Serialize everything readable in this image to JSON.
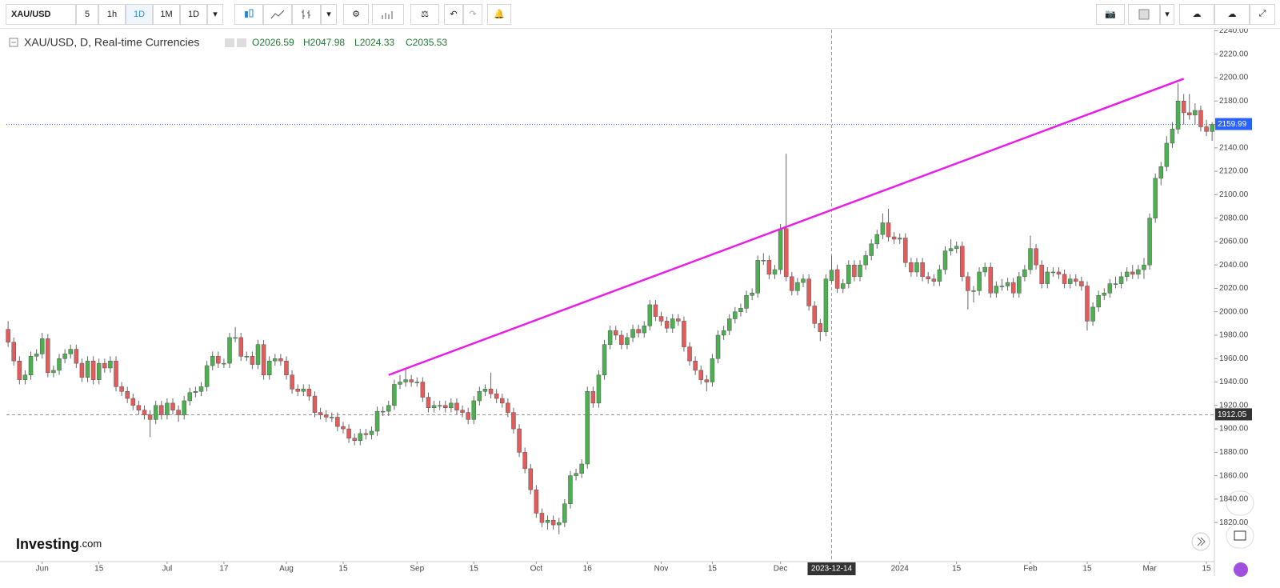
{
  "toolbar": {
    "symbol": "XAU/USD",
    "intervals": [
      "5",
      "1h",
      "1D",
      "1M",
      "1D"
    ],
    "active": 2
  },
  "logo": {
    "brand": "Investing",
    "suffix": ".com"
  },
  "chart_data": {
    "type": "candlestick",
    "title": "XAU/USD, D, Real-time Currencies",
    "ohlc_labels": [
      "O",
      "H",
      "L",
      "C"
    ],
    "up_color": "#4caf50",
    "down_color": "#e35b5b",
    "candles": [
      [
        1985,
        1992,
        1970,
        1974
      ],
      [
        1974,
        1978,
        1954,
        1958
      ],
      [
        1958,
        1962,
        1938,
        1942
      ],
      [
        1942,
        1950,
        1938,
        1946
      ],
      [
        1946,
        1966,
        1942,
        1962
      ],
      [
        1962,
        1968,
        1958,
        1964
      ],
      [
        1964,
        1982,
        1960,
        1977
      ],
      [
        1977,
        1981,
        1944,
        1948
      ],
      [
        1948,
        1954,
        1944,
        1950
      ],
      [
        1950,
        1964,
        1946,
        1960
      ],
      [
        1960,
        1968,
        1956,
        1964
      ],
      [
        1964,
        1972,
        1960,
        1968
      ],
      [
        1968,
        1972,
        1952,
        1956
      ],
      [
        1956,
        1960,
        1940,
        1944
      ],
      [
        1944,
        1962,
        1940,
        1958
      ],
      [
        1958,
        1962,
        1938,
        1942
      ],
      [
        1942,
        1960,
        1938,
        1956
      ],
      [
        1956,
        1960,
        1948,
        1952
      ],
      [
        1952,
        1962,
        1948,
        1958
      ],
      [
        1958,
        1962,
        1932,
        1936
      ],
      [
        1936,
        1940,
        1928,
        1932
      ],
      [
        1932,
        1936,
        1922,
        1926
      ],
      [
        1926,
        1930,
        1916,
        1920
      ],
      [
        1920,
        1924,
        1912,
        1916
      ],
      [
        1916,
        1920,
        1908,
        1912
      ],
      [
        1912,
        1916,
        1893,
        1908
      ],
      [
        1908,
        1924,
        1904,
        1920
      ],
      [
        1920,
        1924,
        1908,
        1912
      ],
      [
        1912,
        1926,
        1908,
        1922
      ],
      [
        1922,
        1926,
        1912,
        1916
      ],
      [
        1916,
        1920,
        1906,
        1912
      ],
      [
        1912,
        1928,
        1908,
        1924
      ],
      [
        1924,
        1935,
        1920,
        1931
      ],
      [
        1931,
        1936,
        1927,
        1932
      ],
      [
        1932,
        1940,
        1928,
        1936
      ],
      [
        1936,
        1958,
        1932,
        1954
      ],
      [
        1954,
        1966,
        1950,
        1962
      ],
      [
        1962,
        1966,
        1952,
        1956
      ],
      [
        1956,
        1960,
        1952,
        1956
      ],
      [
        1956,
        1982,
        1952,
        1978
      ],
      [
        1978,
        1987,
        1974,
        1978
      ],
      [
        1978,
        1982,
        1958,
        1962
      ],
      [
        1962,
        1966,
        1958,
        1962
      ],
      [
        1962,
        1966,
        1951,
        1955
      ],
      [
        1955,
        1976,
        1951,
        1972
      ],
      [
        1972,
        1976,
        1942,
        1946
      ],
      [
        1946,
        1962,
        1942,
        1958
      ],
      [
        1958,
        1964,
        1954,
        1960
      ],
      [
        1960,
        1964,
        1954,
        1958
      ],
      [
        1958,
        1962,
        1942,
        1946
      ],
      [
        1946,
        1950,
        1930,
        1934
      ],
      [
        1934,
        1938,
        1928,
        1932
      ],
      [
        1932,
        1938,
        1928,
        1934
      ],
      [
        1934,
        1938,
        1924,
        1928
      ],
      [
        1928,
        1932,
        1910,
        1914
      ],
      [
        1914,
        1918,
        1908,
        1912
      ],
      [
        1912,
        1916,
        1906,
        1910
      ],
      [
        1910,
        1914,
        1906,
        1910
      ],
      [
        1910,
        1914,
        1898,
        1902
      ],
      [
        1902,
        1906,
        1896,
        1900
      ],
      [
        1900,
        1904,
        1888,
        1892
      ],
      [
        1892,
        1896,
        1886,
        1890
      ],
      [
        1890,
        1900,
        1886,
        1896
      ],
      [
        1896,
        1900,
        1891,
        1895
      ],
      [
        1895,
        1902,
        1891,
        1898
      ],
      [
        1898,
        1919,
        1894,
        1915
      ],
      [
        1915,
        1919,
        1911,
        1915
      ],
      [
        1915,
        1924,
        1911,
        1920
      ],
      [
        1920,
        1942,
        1916,
        1938
      ],
      [
        1938,
        1946,
        1934,
        1940
      ],
      [
        1940,
        1952,
        1936,
        1942
      ],
      [
        1942,
        1946,
        1936,
        1940
      ],
      [
        1940,
        1944,
        1936,
        1940
      ],
      [
        1940,
        1944,
        1923,
        1927
      ],
      [
        1927,
        1931,
        1914,
        1918
      ],
      [
        1918,
        1924,
        1914,
        1920
      ],
      [
        1920,
        1924,
        1916,
        1920
      ],
      [
        1920,
        1924,
        1914,
        1918
      ],
      [
        1918,
        1926,
        1914,
        1922
      ],
      [
        1922,
        1926,
        1912,
        1916
      ],
      [
        1916,
        1920,
        1910,
        1914
      ],
      [
        1914,
        1918,
        1904,
        1908
      ],
      [
        1908,
        1928,
        1904,
        1924
      ],
      [
        1924,
        1936,
        1920,
        1932
      ],
      [
        1932,
        1938,
        1928,
        1934
      ],
      [
        1934,
        1948,
        1926,
        1930
      ],
      [
        1930,
        1934,
        1922,
        1926
      ],
      [
        1926,
        1930,
        1918,
        1922
      ],
      [
        1922,
        1926,
        1910,
        1914
      ],
      [
        1914,
        1918,
        1896,
        1900
      ],
      [
        1900,
        1904,
        1876,
        1880
      ],
      [
        1880,
        1884,
        1862,
        1866
      ],
      [
        1866,
        1870,
        1844,
        1848
      ],
      [
        1848,
        1852,
        1824,
        1828
      ],
      [
        1828,
        1832,
        1816,
        1820
      ],
      [
        1820,
        1826,
        1814,
        1822
      ],
      [
        1822,
        1826,
        1814,
        1818
      ],
      [
        1818,
        1824,
        1810,
        1820
      ],
      [
        1820,
        1840,
        1816,
        1836
      ],
      [
        1836,
        1864,
        1832,
        1860
      ],
      [
        1860,
        1866,
        1856,
        1862
      ],
      [
        1862,
        1874,
        1858,
        1870
      ],
      [
        1870,
        1936,
        1866,
        1932
      ],
      [
        1932,
        1936,
        1918,
        1922
      ],
      [
        1922,
        1950,
        1918,
        1946
      ],
      [
        1946,
        1976,
        1942,
        1972
      ],
      [
        1972,
        1988,
        1968,
        1984
      ],
      [
        1984,
        1988,
        1976,
        1980
      ],
      [
        1980,
        1984,
        1968,
        1972
      ],
      [
        1972,
        1982,
        1968,
        1978
      ],
      [
        1978,
        1989,
        1974,
        1985
      ],
      [
        1985,
        1989,
        1978,
        1982
      ],
      [
        1982,
        1992,
        1978,
        1988
      ],
      [
        1988,
        2010,
        1984,
        2006
      ],
      [
        2006,
        2010,
        1992,
        1996
      ],
      [
        1996,
        2000,
        1988,
        1992
      ],
      [
        1992,
        1996,
        1982,
        1986
      ],
      [
        1986,
        1998,
        1982,
        1994
      ],
      [
        1994,
        1998,
        1988,
        1992
      ],
      [
        1992,
        1996,
        1966,
        1970
      ],
      [
        1970,
        1974,
        1954,
        1958
      ],
      [
        1958,
        1962,
        1946,
        1950
      ],
      [
        1950,
        1954,
        1938,
        1942
      ],
      [
        1942,
        1946,
        1932,
        1940
      ],
      [
        1940,
        1964,
        1936,
        1960
      ],
      [
        1960,
        1984,
        1956,
        1980
      ],
      [
        1980,
        1988,
        1976,
        1984
      ],
      [
        1984,
        1998,
        1980,
        1994
      ],
      [
        1994,
        2004,
        1990,
        2000
      ],
      [
        2000,
        2007,
        1996,
        2003
      ],
      [
        2003,
        2018,
        1999,
        2014
      ],
      [
        2014,
        2020,
        2010,
        2016
      ],
      [
        2016,
        2048,
        2012,
        2044
      ],
      [
        2044,
        2050,
        2040,
        2044
      ],
      [
        2044,
        2048,
        2028,
        2032
      ],
      [
        2032,
        2040,
        2028,
        2036
      ],
      [
        2036,
        2075,
        2032,
        2071
      ],
      [
        2071,
        2135,
        2026,
        2030
      ],
      [
        2030,
        2034,
        2014,
        2018
      ],
      [
        2018,
        2029,
        2014,
        2025
      ],
      [
        2025,
        2032,
        2021,
        2028
      ],
      [
        2028,
        2032,
        2001,
        2005
      ],
      [
        2005,
        2009,
        1986,
        1990
      ],
      [
        1990,
        1994,
        1975,
        1983
      ],
      [
        1983,
        2032,
        1979,
        2028
      ],
      [
        2026.59,
        2047.98,
        2024.33,
        2035.53
      ],
      [
        2036,
        2040,
        2016,
        2020
      ],
      [
        2020,
        2028,
        2016,
        2024
      ],
      [
        2024,
        2044,
        2020,
        2040
      ],
      [
        2040,
        2044,
        2026,
        2030
      ],
      [
        2030,
        2044,
        2026,
        2040
      ],
      [
        2040,
        2052,
        2036,
        2048
      ],
      [
        2048,
        2062,
        2044,
        2058
      ],
      [
        2058,
        2070,
        2054,
        2066
      ],
      [
        2066,
        2084,
        2062,
        2076
      ],
      [
        2076,
        2088,
        2060,
        2064
      ],
      [
        2064,
        2068,
        2058,
        2062
      ],
      [
        2062,
        2067,
        2058,
        2063
      ],
      [
        2063,
        2067,
        2038,
        2042
      ],
      [
        2042,
        2046,
        2030,
        2034
      ],
      [
        2034,
        2046,
        2030,
        2042
      ],
      [
        2042,
        2046,
        2026,
        2030
      ],
      [
        2030,
        2034,
        2024,
        2028
      ],
      [
        2028,
        2032,
        2022,
        2026
      ],
      [
        2026,
        2040,
        2022,
        2036
      ],
      [
        2036,
        2056,
        2032,
        2052
      ],
      [
        2052,
        2062,
        2048,
        2054
      ],
      [
        2054,
        2060,
        2050,
        2056
      ],
      [
        2056,
        2060,
        2026,
        2030
      ],
      [
        2030,
        2034,
        2002,
        2018
      ],
      [
        2018,
        2022,
        2008,
        2018
      ],
      [
        2018,
        2038,
        2014,
        2034
      ],
      [
        2034,
        2042,
        2030,
        2038
      ],
      [
        2038,
        2042,
        2012,
        2016
      ],
      [
        2016,
        2026,
        2012,
        2022
      ],
      [
        2022,
        2028,
        2018,
        2022
      ],
      [
        2022,
        2029,
        2018,
        2025
      ],
      [
        2025,
        2029,
        2012,
        2016
      ],
      [
        2016,
        2034,
        2012,
        2030
      ],
      [
        2030,
        2040,
        2026,
        2036
      ],
      [
        2036,
        2065,
        2032,
        2054
      ],
      [
        2054,
        2058,
        2036,
        2040
      ],
      [
        2040,
        2044,
        2020,
        2024
      ],
      [
        2024,
        2038,
        2020,
        2034
      ],
      [
        2034,
        2038,
        2030,
        2034
      ],
      [
        2034,
        2038,
        2028,
        2032
      ],
      [
        2032,
        2036,
        2020,
        2024
      ],
      [
        2024,
        2032,
        2020,
        2028
      ],
      [
        2028,
        2032,
        2022,
        2026
      ],
      [
        2026,
        2030,
        2018,
        2022
      ],
      [
        2022,
        2026,
        1984,
        1992
      ],
      [
        1992,
        2008,
        1988,
        2004
      ],
      [
        2004,
        2018,
        2000,
        2014
      ],
      [
        2014,
        2020,
        2010,
        2016
      ],
      [
        2016,
        2028,
        2012,
        2024
      ],
      [
        2024,
        2030,
        2020,
        2024
      ],
      [
        2024,
        2034,
        2020,
        2030
      ],
      [
        2030,
        2038,
        2026,
        2034
      ],
      [
        2034,
        2040,
        2028,
        2032
      ],
      [
        2032,
        2040,
        2028,
        2036
      ],
      [
        2036,
        2046,
        2028,
        2040
      ],
      [
        2040,
        2084,
        2036,
        2080
      ],
      [
        2080,
        2118,
        2076,
        2114
      ],
      [
        2114,
        2128,
        2108,
        2124
      ],
      [
        2124,
        2150,
        2120,
        2144
      ],
      [
        2144,
        2162,
        2140,
        2156
      ],
      [
        2156,
        2195,
        2152,
        2180
      ],
      [
        2180,
        2186,
        2160,
        2170
      ],
      [
        2170,
        2186,
        2164,
        2168
      ],
      [
        2168,
        2178,
        2160,
        2172
      ],
      [
        2172,
        2176,
        2154,
        2158
      ],
      [
        2158,
        2164,
        2150,
        2154
      ],
      [
        2154,
        2162,
        2146,
        2160
      ]
    ],
    "xlim": [
      -0.3,
      212.4
    ],
    "xticks": [
      {
        "value": 6,
        "label": "Jun"
      },
      {
        "value": 16,
        "label": "15"
      },
      {
        "value": 28,
        "label": "Jul"
      },
      {
        "value": 38,
        "label": "17"
      },
      {
        "value": 49,
        "label": "Aug"
      },
      {
        "value": 59,
        "label": "15"
      },
      {
        "value": 72,
        "label": "Sep"
      },
      {
        "value": 82,
        "label": "15"
      },
      {
        "value": 93,
        "label": "Oct"
      },
      {
        "value": 102,
        "label": "16"
      },
      {
        "value": 115,
        "label": "Nov"
      },
      {
        "value": 124,
        "label": "15"
      },
      {
        "value": 136,
        "label": "Dec"
      },
      {
        "value": 157,
        "label": "2024"
      },
      {
        "value": 167,
        "label": "15"
      },
      {
        "value": 180,
        "label": "Feb"
      },
      {
        "value": 190,
        "label": "15"
      },
      {
        "value": 201,
        "label": "Mar"
      },
      {
        "value": 211,
        "label": "15"
      }
    ],
    "crosshair": {
      "value": 145,
      "label": "2023-12-14"
    },
    "ylim": [
      1788,
      2241
    ],
    "yticks": [
      {
        "value": 1820,
        "label": "1820.00"
      },
      {
        "value": 1840,
        "label": "1840.00"
      },
      {
        "value": 1860,
        "label": "1860.00"
      },
      {
        "value": 1880,
        "label": "1880.00"
      },
      {
        "value": 1900,
        "label": "1900.00"
      },
      {
        "value": 1920,
        "label": "1920.00"
      },
      {
        "value": 1940,
        "label": "1940.00"
      },
      {
        "value": 1960,
        "label": "1960.00"
      },
      {
        "value": 1980,
        "label": "1980.00"
      },
      {
        "value": 2000,
        "label": "2000.00"
      },
      {
        "value": 2020,
        "label": "2020.00"
      },
      {
        "value": 2040,
        "label": "2040.00"
      },
      {
        "value": 2060,
        "label": "2060.00"
      },
      {
        "value": 2080,
        "label": "2080.00"
      },
      {
        "value": 2100,
        "label": "2100.00"
      },
      {
        "value": 2120,
        "label": "2120.00"
      },
      {
        "value": 2140,
        "label": "2140.00"
      },
      {
        "value": 2160,
        "label": "2160.00"
      },
      {
        "value": 2180,
        "label": "2180.00"
      },
      {
        "value": 2200,
        "label": "2200.00"
      },
      {
        "value": 2220,
        "label": "2220.00"
      },
      {
        "value": 2240,
        "label": "2240.00"
      }
    ],
    "trendline": {
      "from": [
        67,
        1946
      ],
      "to": [
        207,
        2199
      ],
      "color": "#e91ee6"
    },
    "last_price": 2159.99,
    "last_price_color": "#2962ff",
    "price_line": 1912.05
  }
}
